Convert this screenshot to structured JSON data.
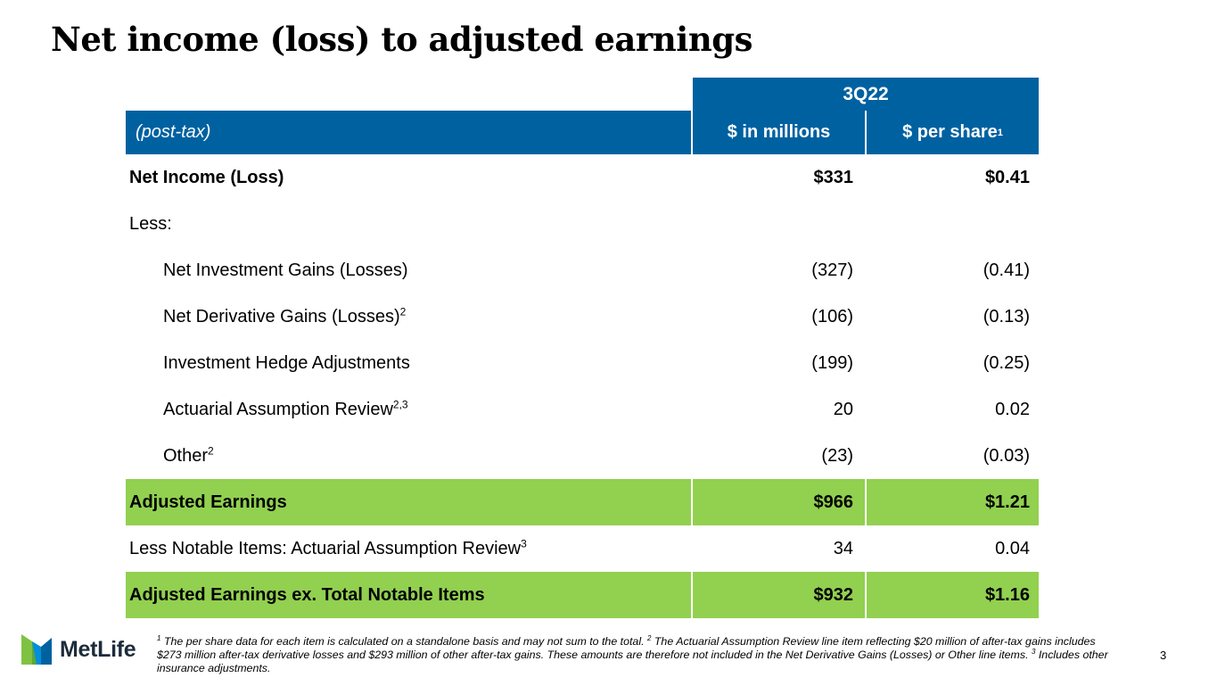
{
  "title": "Net income (loss) to adjusted earnings",
  "table": {
    "period": "3Q22",
    "header": {
      "label": "(post-tax)",
      "col_millions": "$ in millions",
      "col_per_share": "$ per share",
      "col_per_share_sup": "1"
    },
    "rows": [
      {
        "label": "Net Income (Loss)",
        "sup": "",
        "millions": "$331",
        "per_share": "$0.41"
      },
      {
        "label": "Less:",
        "sup": "",
        "millions": "",
        "per_share": ""
      },
      {
        "label": "Net Investment Gains (Losses)",
        "sup": "",
        "millions": "(327)",
        "per_share": "(0.41)"
      },
      {
        "label": "Net Derivative Gains (Losses)",
        "sup": "2",
        "millions": "(106)",
        "per_share": "(0.13)"
      },
      {
        "label": "Investment Hedge Adjustments",
        "sup": "",
        "millions": "(199)",
        "per_share": "(0.25)"
      },
      {
        "label": "Actuarial Assumption Review",
        "sup": "2,3",
        "millions": "20",
        "per_share": "0.02"
      },
      {
        "label": "Other",
        "sup": "2",
        "millions": "(23)",
        "per_share": "(0.03)"
      },
      {
        "label": "Adjusted Earnings",
        "sup": "",
        "millions": "$966",
        "per_share": "$1.21"
      },
      {
        "label": "Less Notable Items: Actuarial Assumption Review",
        "sup": "3",
        "millions": "34",
        "per_share": "0.04"
      },
      {
        "label": "Adjusted Earnings ex. Total Notable Items",
        "sup": "",
        "millions": "$932",
        "per_share": "$1.16"
      }
    ]
  },
  "footnote": {
    "sup1": "1",
    "text1": " The per share data for each item is calculated on a standalone basis and may not sum to the total. ",
    "sup2": "2",
    "text2": " The Actuarial Assumption Review line item reflecting $20 million of after-tax gains includes $273 million after-tax derivative losses and $293 million of other after-tax gains. These amounts are therefore not included in the Net Derivative Gains (Losses) or Other line items. ",
    "sup3": "3",
    "text3": " Includes other insurance adjustments."
  },
  "logo": {
    "name": "MetLife",
    "icon": "metlife-m-icon"
  },
  "page_number": "3",
  "colors": {
    "header_blue": "#0061a0",
    "highlight_green": "#92d050"
  }
}
